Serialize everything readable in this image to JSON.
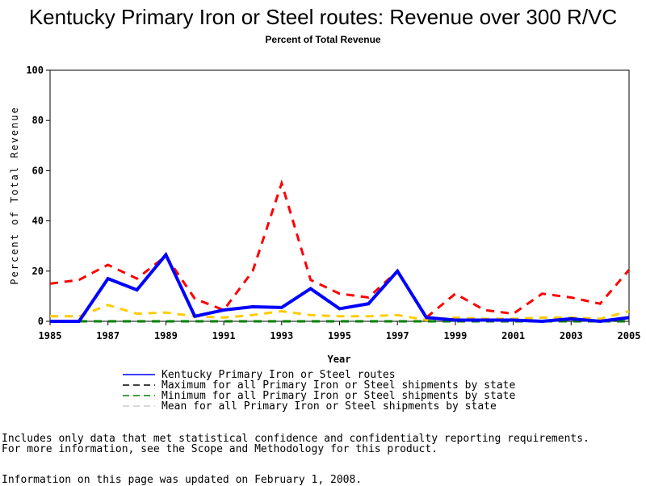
{
  "chart_data": {
    "type": "line",
    "title": "Kentucky Primary Iron or Steel routes: Revenue over 300 R/VC",
    "subtitle": "Percent of Total Revenue",
    "xlabel": "Year",
    "ylabel": "Percent of Total Revenue",
    "xlim": [
      1985,
      2005
    ],
    "ylim": [
      0,
      100
    ],
    "xticks": [
      1985,
      1987,
      1989,
      1991,
      1993,
      1995,
      1997,
      1999,
      2001,
      2003,
      2005
    ],
    "yticks": [
      0,
      20,
      40,
      60,
      80,
      100
    ],
    "x": [
      1985,
      1986,
      1987,
      1988,
      1989,
      1990,
      1991,
      1992,
      1993,
      1994,
      1995,
      1996,
      1997,
      1998,
      1999,
      2000,
      2001,
      2002,
      2003,
      2004,
      2005
    ],
    "series": [
      {
        "name": "Kentucky Primary Iron or Steel routes",
        "color": "#0000ff",
        "style": "solid",
        "values": [
          0,
          0,
          17,
          12.5,
          26.5,
          2,
          4.5,
          5.8,
          5.5,
          13,
          5,
          7,
          20,
          1.5,
          0.5,
          0.5,
          0.5,
          0,
          1,
          0,
          1.5
        ]
      },
      {
        "name": "Maximum for all Primary Iron or Steel shipments by state",
        "color": "#ff0000",
        "style": "dashed",
        "values": [
          15,
          16.5,
          22.5,
          17,
          26,
          9,
          4.5,
          20,
          55,
          16.5,
          11,
          9.5,
          20,
          1.5,
          11,
          4.5,
          3,
          11,
          9.5,
          7,
          20.5
        ]
      },
      {
        "name": "Minimum for all Primary Iron or Steel shipments by state",
        "color": "#008000",
        "style": "dashed",
        "values": [
          0,
          0,
          0,
          0,
          0,
          0,
          0,
          0,
          0,
          0,
          0,
          0,
          0,
          0,
          0,
          0,
          0,
          0,
          0,
          0,
          0
        ]
      },
      {
        "name": "Mean for all Primary Iron or Steel shipments by state",
        "color": "#ffcc00",
        "style": "dashed",
        "values": [
          2,
          2,
          6.5,
          3,
          3.5,
          2,
          1.5,
          2.5,
          4,
          2.5,
          2,
          2,
          2.5,
          0.5,
          1.5,
          1,
          1,
          1.5,
          1.5,
          1,
          4
        ]
      }
    ],
    "legend_position": "bottom",
    "grid": false
  },
  "notes": [
    "Includes only data that met statistical confidence and confidentialty reporting requirements.",
    "For more information, see the Scope and Methodology for this product.",
    "Information on this page was updated on February 1, 2008."
  ]
}
